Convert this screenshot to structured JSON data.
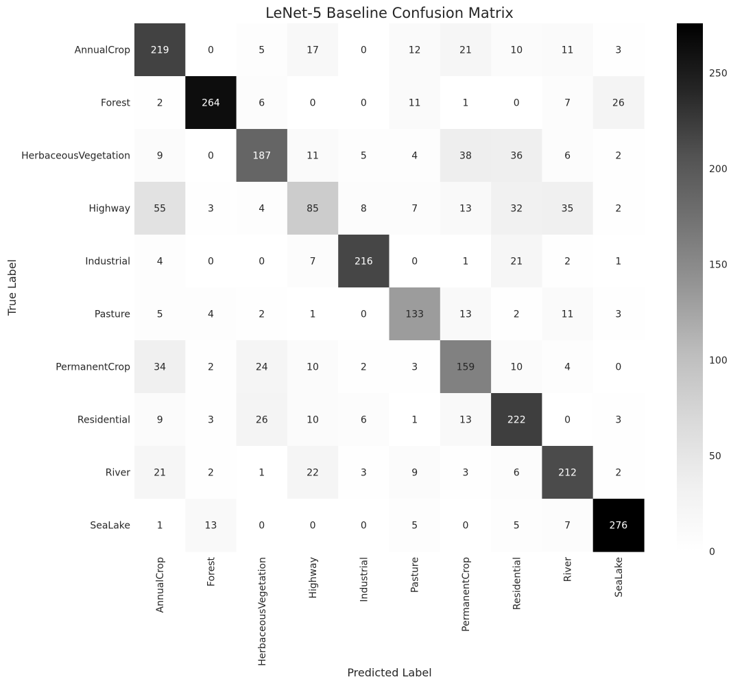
{
  "chart_data": {
    "type": "heatmap",
    "title": "LeNet-5 Baseline Confusion Matrix",
    "xlabel": "Predicted Label",
    "ylabel": "True Label",
    "x_categories": [
      "AnnualCrop",
      "Forest",
      "HerbaceousVegetation",
      "Highway",
      "Industrial",
      "Pasture",
      "PermanentCrop",
      "Residential",
      "River",
      "SeaLake"
    ],
    "y_categories": [
      "AnnualCrop",
      "Forest",
      "HerbaceousVegetation",
      "Highway",
      "Industrial",
      "Pasture",
      "PermanentCrop",
      "Residential",
      "River",
      "SeaLake"
    ],
    "values": [
      [
        219,
        0,
        5,
        17,
        0,
        12,
        21,
        10,
        11,
        3
      ],
      [
        2,
        264,
        6,
        0,
        0,
        11,
        1,
        0,
        7,
        26
      ],
      [
        9,
        0,
        187,
        11,
        5,
        4,
        38,
        36,
        6,
        2
      ],
      [
        55,
        3,
        4,
        85,
        8,
        7,
        13,
        32,
        35,
        2
      ],
      [
        4,
        0,
        0,
        7,
        216,
        0,
        1,
        21,
        2,
        1
      ],
      [
        5,
        4,
        2,
        1,
        0,
        133,
        13,
        2,
        11,
        3
      ],
      [
        34,
        2,
        24,
        10,
        2,
        3,
        159,
        10,
        4,
        0
      ],
      [
        9,
        3,
        26,
        10,
        6,
        1,
        13,
        222,
        0,
        3
      ],
      [
        21,
        2,
        1,
        22,
        3,
        9,
        3,
        6,
        212,
        2
      ],
      [
        1,
        13,
        0,
        0,
        0,
        5,
        0,
        5,
        7,
        276
      ]
    ],
    "colormap": "Greys",
    "vmin": 0,
    "vmax": 276,
    "colorbar_ticks": [
      0,
      50,
      100,
      150,
      200,
      250
    ],
    "colorbar_placement": "right",
    "grid": false
  }
}
